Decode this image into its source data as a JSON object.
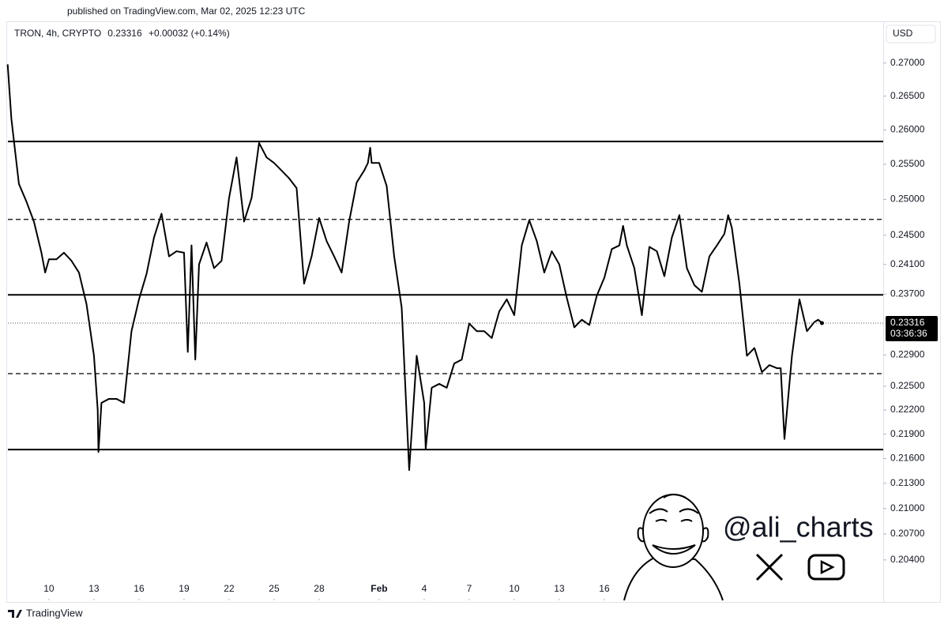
{
  "chart_data": {
    "type": "line",
    "published": "published on TradingView.com, Mar 02, 2025 12:23 UTC",
    "symbol": "TRON, 4h, CRYPTO",
    "change": "+0.00032 (+0.14%)",
    "currency": "USD",
    "countdown": "03:36:36",
    "brand": "TradingView",
    "watermark": "@ali_charts",
    "color": "#000000",
    "log_y": true,
    "x": [
      7.25,
      7.5,
      8,
      8.5,
      9,
      9.5,
      9.75,
      10,
      10.5,
      11,
      11.5,
      12,
      12.5,
      13,
      13.25,
      13.3,
      13.5,
      14,
      14.5,
      15,
      15.5,
      16,
      16.5,
      17,
      17.5,
      18,
      18.5,
      19,
      19.25,
      19.5,
      19.75,
      20,
      20.5,
      21,
      21.5,
      22,
      22.5,
      23,
      23.5,
      24,
      24.5,
      25,
      25.5,
      26,
      26.5,
      27,
      27.5,
      28,
      28.5,
      29,
      29.5,
      30,
      30.5,
      31,
      31.25,
      31.4,
      31.5,
      32,
      32.5,
      33,
      33.5,
      34,
      34.5,
      35,
      35.1,
      35.5,
      36,
      36.5,
      37,
      37.5,
      38,
      38.5,
      39,
      39.5,
      40,
      40.5,
      41,
      41.5,
      42,
      42.5,
      43,
      43.5,
      44,
      44.5,
      45,
      45.5,
      46,
      46.5,
      47,
      47.5,
      48,
      48.25,
      48.5,
      49,
      49.5,
      50,
      50.5,
      51,
      51.5,
      52,
      52.5,
      53,
      53.5,
      54,
      54.5,
      55,
      55.25,
      55.5,
      56,
      56.5,
      57,
      57.5,
      58,
      58.5,
      58.75,
      59,
      59.5,
      60,
      60.5,
      61,
      61.25,
      61.5
    ],
    "values": [
      0.2698,
      0.2616,
      0.2522,
      0.2497,
      0.2469,
      0.2426,
      0.2399,
      0.2417,
      0.2417,
      0.2426,
      0.2415,
      0.2399,
      0.2357,
      0.2289,
      0.222,
      0.2168,
      0.2229,
      0.2234,
      0.2234,
      0.2229,
      0.2321,
      0.2363,
      0.2397,
      0.2447,
      0.248,
      0.2421,
      0.2428,
      0.2426,
      0.2294,
      0.2436,
      0.2284,
      0.241,
      0.244,
      0.2405,
      0.2415,
      0.2502,
      0.256,
      0.2469,
      0.2502,
      0.2581,
      0.256,
      0.2552,
      0.2541,
      0.253,
      0.2516,
      0.2384,
      0.2421,
      0.2474,
      0.2442,
      0.2421,
      0.2399,
      0.2469,
      0.2524,
      0.2541,
      0.2552,
      0.2574,
      0.2552,
      0.2552,
      0.2519,
      0.2421,
      0.2352,
      0.2146,
      0.2289,
      0.2229,
      0.2172,
      0.2248,
      0.2253,
      0.2248,
      0.2279,
      0.2284,
      0.2331,
      0.2321,
      0.2321,
      0.2312,
      0.2347,
      0.2363,
      0.2342,
      0.2436,
      0.2471,
      0.2442,
      0.2399,
      0.2428,
      0.241,
      0.2365,
      0.2326,
      0.2336,
      0.2329,
      0.2368,
      0.2392,
      0.2431,
      0.2436,
      0.2463,
      0.2436,
      0.2405,
      0.2342,
      0.2434,
      0.2428,
      0.2394,
      0.2447,
      0.2478,
      0.2405,
      0.2382,
      0.2373,
      0.2421,
      0.2436,
      0.2452,
      0.2478,
      0.246,
      0.2384,
      0.2289,
      0.2299,
      0.2268,
      0.2277,
      0.2273,
      0.2273,
      0.2184,
      0.2289,
      0.2363,
      0.2321,
      0.2333,
      0.2336,
      0.23316
    ],
    "levels": [
      {
        "value": 0.2583,
        "style": "solid"
      },
      {
        "value": 0.2472,
        "style": "dashed"
      },
      {
        "value": 0.2369,
        "style": "solid"
      },
      {
        "value": 0.2266,
        "style": "dashed"
      },
      {
        "value": 0.2171,
        "style": "solid"
      }
    ],
    "xlim": [
      6.74,
      65.58
    ],
    "ylim": [
      0.1994,
      0.2763
    ],
    "xticks": [
      10,
      13,
      16,
      19,
      22,
      25,
      28,
      {
        "value": 32,
        "label": "Feb"
      },
      {
        "value": 35,
        "label": "4"
      },
      {
        "value": 38,
        "label": "7"
      },
      {
        "value": 41,
        "label": "10"
      },
      {
        "value": 44,
        "label": "13"
      },
      {
        "value": 47,
        "label": "16"
      }
    ],
    "yticks": [
      {
        "value": 0.27,
        "label": "0.27000"
      },
      {
        "value": 0.265,
        "label": "0.26500"
      },
      {
        "value": 0.26,
        "label": "0.26000"
      },
      {
        "value": 0.255,
        "label": "0.25500"
      },
      {
        "value": 0.25,
        "label": "0.25000"
      },
      {
        "value": 0.245,
        "label": "0.24500"
      },
      {
        "value": 0.241,
        "label": "0.24100"
      },
      {
        "value": 0.237,
        "label": "0.23700"
      },
      {
        "value": 0.229,
        "label": "0.22900"
      },
      {
        "value": 0.225,
        "label": "0.22500"
      },
      {
        "value": 0.222,
        "label": "0.22200"
      },
      {
        "value": 0.219,
        "label": "0.21900"
      },
      {
        "value": 0.216,
        "label": "0.21600"
      },
      {
        "value": 0.213,
        "label": "0.21300"
      },
      {
        "value": 0.21,
        "label": "0.21000"
      },
      {
        "value": 0.207,
        "label": "0.20700"
      },
      {
        "value": 0.204,
        "label": "0.20400"
      }
    ]
  }
}
